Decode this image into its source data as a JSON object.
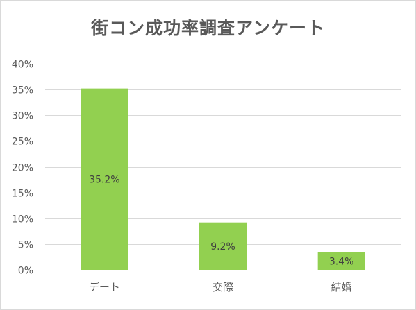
{
  "chart_data": {
    "type": "bar",
    "title": "街コン成功率調査アンケート",
    "xlabel": "",
    "ylabel": "",
    "categories": [
      "デート",
      "交際",
      "結婚"
    ],
    "values": [
      35.2,
      9.2,
      3.4
    ],
    "data_labels": [
      "35.2%",
      "9.2%",
      "3.4%"
    ],
    "ylim": [
      0,
      40
    ],
    "yticks": [
      0,
      5,
      10,
      15,
      20,
      25,
      30,
      35,
      40
    ],
    "ytick_labels": [
      "0%",
      "5%",
      "10%",
      "15%",
      "20%",
      "25%",
      "30%",
      "35%",
      "40%"
    ],
    "grid": true,
    "legend": "none",
    "bar_color": "#92d050"
  }
}
